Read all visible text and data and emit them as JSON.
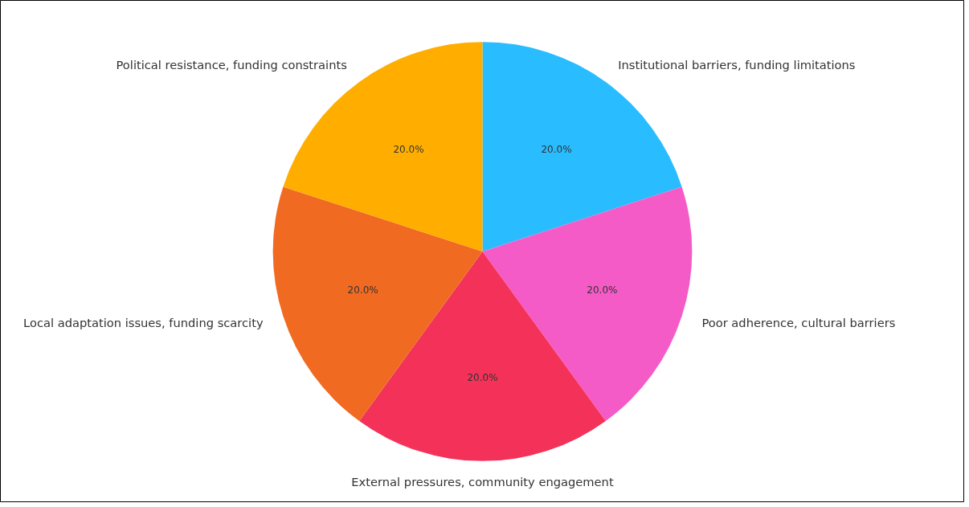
{
  "chart_data": {
    "type": "pie",
    "categories": [
      "Institutional barriers, funding limitations",
      "Poor adherence, cultural barriers",
      "External pressures, community engagement",
      "Local adaptation issues, funding scarcity",
      "Political resistance, funding constraints"
    ],
    "values": [
      20,
      20,
      20,
      20,
      20
    ],
    "colors": [
      "#29bcff",
      "#f55bc6",
      "#f43158",
      "#f06a22",
      "#ffae00"
    ],
    "value_labels": [
      "20.0%",
      "20.0%",
      "20.0%",
      "20.0%",
      "20.0%"
    ],
    "legend": false
  }
}
